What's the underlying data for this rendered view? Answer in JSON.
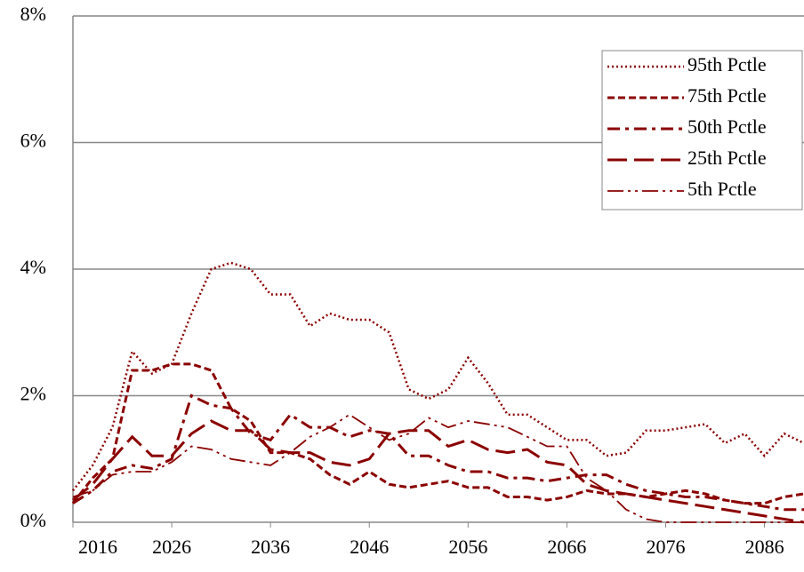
{
  "chart_data": {
    "type": "line",
    "x": [
      2016,
      2018,
      2020,
      2022,
      2024,
      2026,
      2028,
      2030,
      2032,
      2034,
      2036,
      2038,
      2040,
      2042,
      2044,
      2046,
      2048,
      2050,
      2052,
      2054,
      2056,
      2058,
      2060,
      2062,
      2064,
      2066,
      2068,
      2070,
      2072,
      2074,
      2076,
      2078,
      2080,
      2082,
      2084,
      2086,
      2088,
      2090
    ],
    "xlim": [
      2016,
      2090
    ],
    "xticks": [
      2016,
      2026,
      2036,
      2046,
      2056,
      2066,
      2076,
      2086
    ],
    "ylim": [
      0,
      8
    ],
    "yticks": [
      {
        "value": 0,
        "label": "0%"
      },
      {
        "value": 2,
        "label": "2%"
      },
      {
        "value": 4,
        "label": "4%"
      },
      {
        "value": 6,
        "label": "6%"
      },
      {
        "value": 8,
        "label": "8%"
      }
    ],
    "grid": true,
    "legend": "upper right",
    "series": [
      {
        "name": "95th Pctle",
        "color": "#8b0000",
        "dash": "dotted",
        "values": [
          0.5,
          0.9,
          1.5,
          2.7,
          2.35,
          2.5,
          3.3,
          4.0,
          4.1,
          4.0,
          3.6,
          3.6,
          3.1,
          3.3,
          3.2,
          3.2,
          3.0,
          2.1,
          1.95,
          2.1,
          2.6,
          2.2,
          1.7,
          1.7,
          1.5,
          1.3,
          1.3,
          1.05,
          1.1,
          1.45,
          1.45,
          1.5,
          1.55,
          1.25,
          1.4,
          1.05,
          1.4,
          1.25
        ]
      },
      {
        "name": "75th Pctle",
        "color": "#8b0000",
        "dash": "dashed",
        "values": [
          0.3,
          0.7,
          1.0,
          2.4,
          2.4,
          2.5,
          2.5,
          2.4,
          1.8,
          1.6,
          1.1,
          1.1,
          1.0,
          0.75,
          0.6,
          0.8,
          0.6,
          0.55,
          0.6,
          0.65,
          0.55,
          0.55,
          0.4,
          0.4,
          0.35,
          0.4,
          0.5,
          0.45,
          0.45,
          0.4,
          0.45,
          0.5,
          0.45,
          0.35,
          0.3,
          0.3,
          0.4,
          0.45
        ]
      },
      {
        "name": "50th Pctle",
        "color": "#8b0000",
        "dash": "dashdot",
        "values": [
          0.3,
          0.5,
          0.8,
          0.9,
          0.85,
          1.0,
          2.0,
          1.85,
          1.8,
          1.4,
          1.3,
          1.7,
          1.5,
          1.5,
          1.35,
          1.45,
          1.4,
          1.05,
          1.05,
          0.9,
          0.8,
          0.8,
          0.7,
          0.7,
          0.65,
          0.7,
          0.75,
          0.75,
          0.6,
          0.5,
          0.45,
          0.4,
          0.4,
          0.35,
          0.3,
          0.25,
          0.2,
          0.2
        ]
      },
      {
        "name": "25th Pctle",
        "color": "#8b0000",
        "dash": "longdash",
        "values": [
          0.35,
          0.6,
          1.0,
          1.35,
          1.05,
          1.05,
          1.4,
          1.6,
          1.45,
          1.45,
          1.15,
          1.1,
          1.1,
          0.95,
          0.9,
          1.0,
          1.4,
          1.45,
          1.45,
          1.2,
          1.3,
          1.15,
          1.1,
          1.15,
          0.95,
          0.9,
          0.6,
          0.5,
          0.45,
          0.4,
          0.35,
          0.3,
          0.25,
          0.2,
          0.15,
          0.1,
          0.05,
          0.0
        ]
      },
      {
        "name": "5th Pctle",
        "color": "#8b0000",
        "dash": "dashdotdot",
        "values": [
          0.4,
          0.5,
          0.75,
          0.8,
          0.8,
          0.95,
          1.2,
          1.15,
          1.0,
          0.95,
          0.9,
          1.1,
          1.35,
          1.5,
          1.7,
          1.5,
          1.3,
          1.4,
          1.65,
          1.5,
          1.6,
          1.55,
          1.5,
          1.35,
          1.2,
          1.2,
          0.7,
          0.5,
          0.2,
          0.05,
          0.0,
          0.0,
          0.0,
          0.0,
          0.0,
          0.0,
          0.0,
          0.0
        ]
      }
    ]
  }
}
